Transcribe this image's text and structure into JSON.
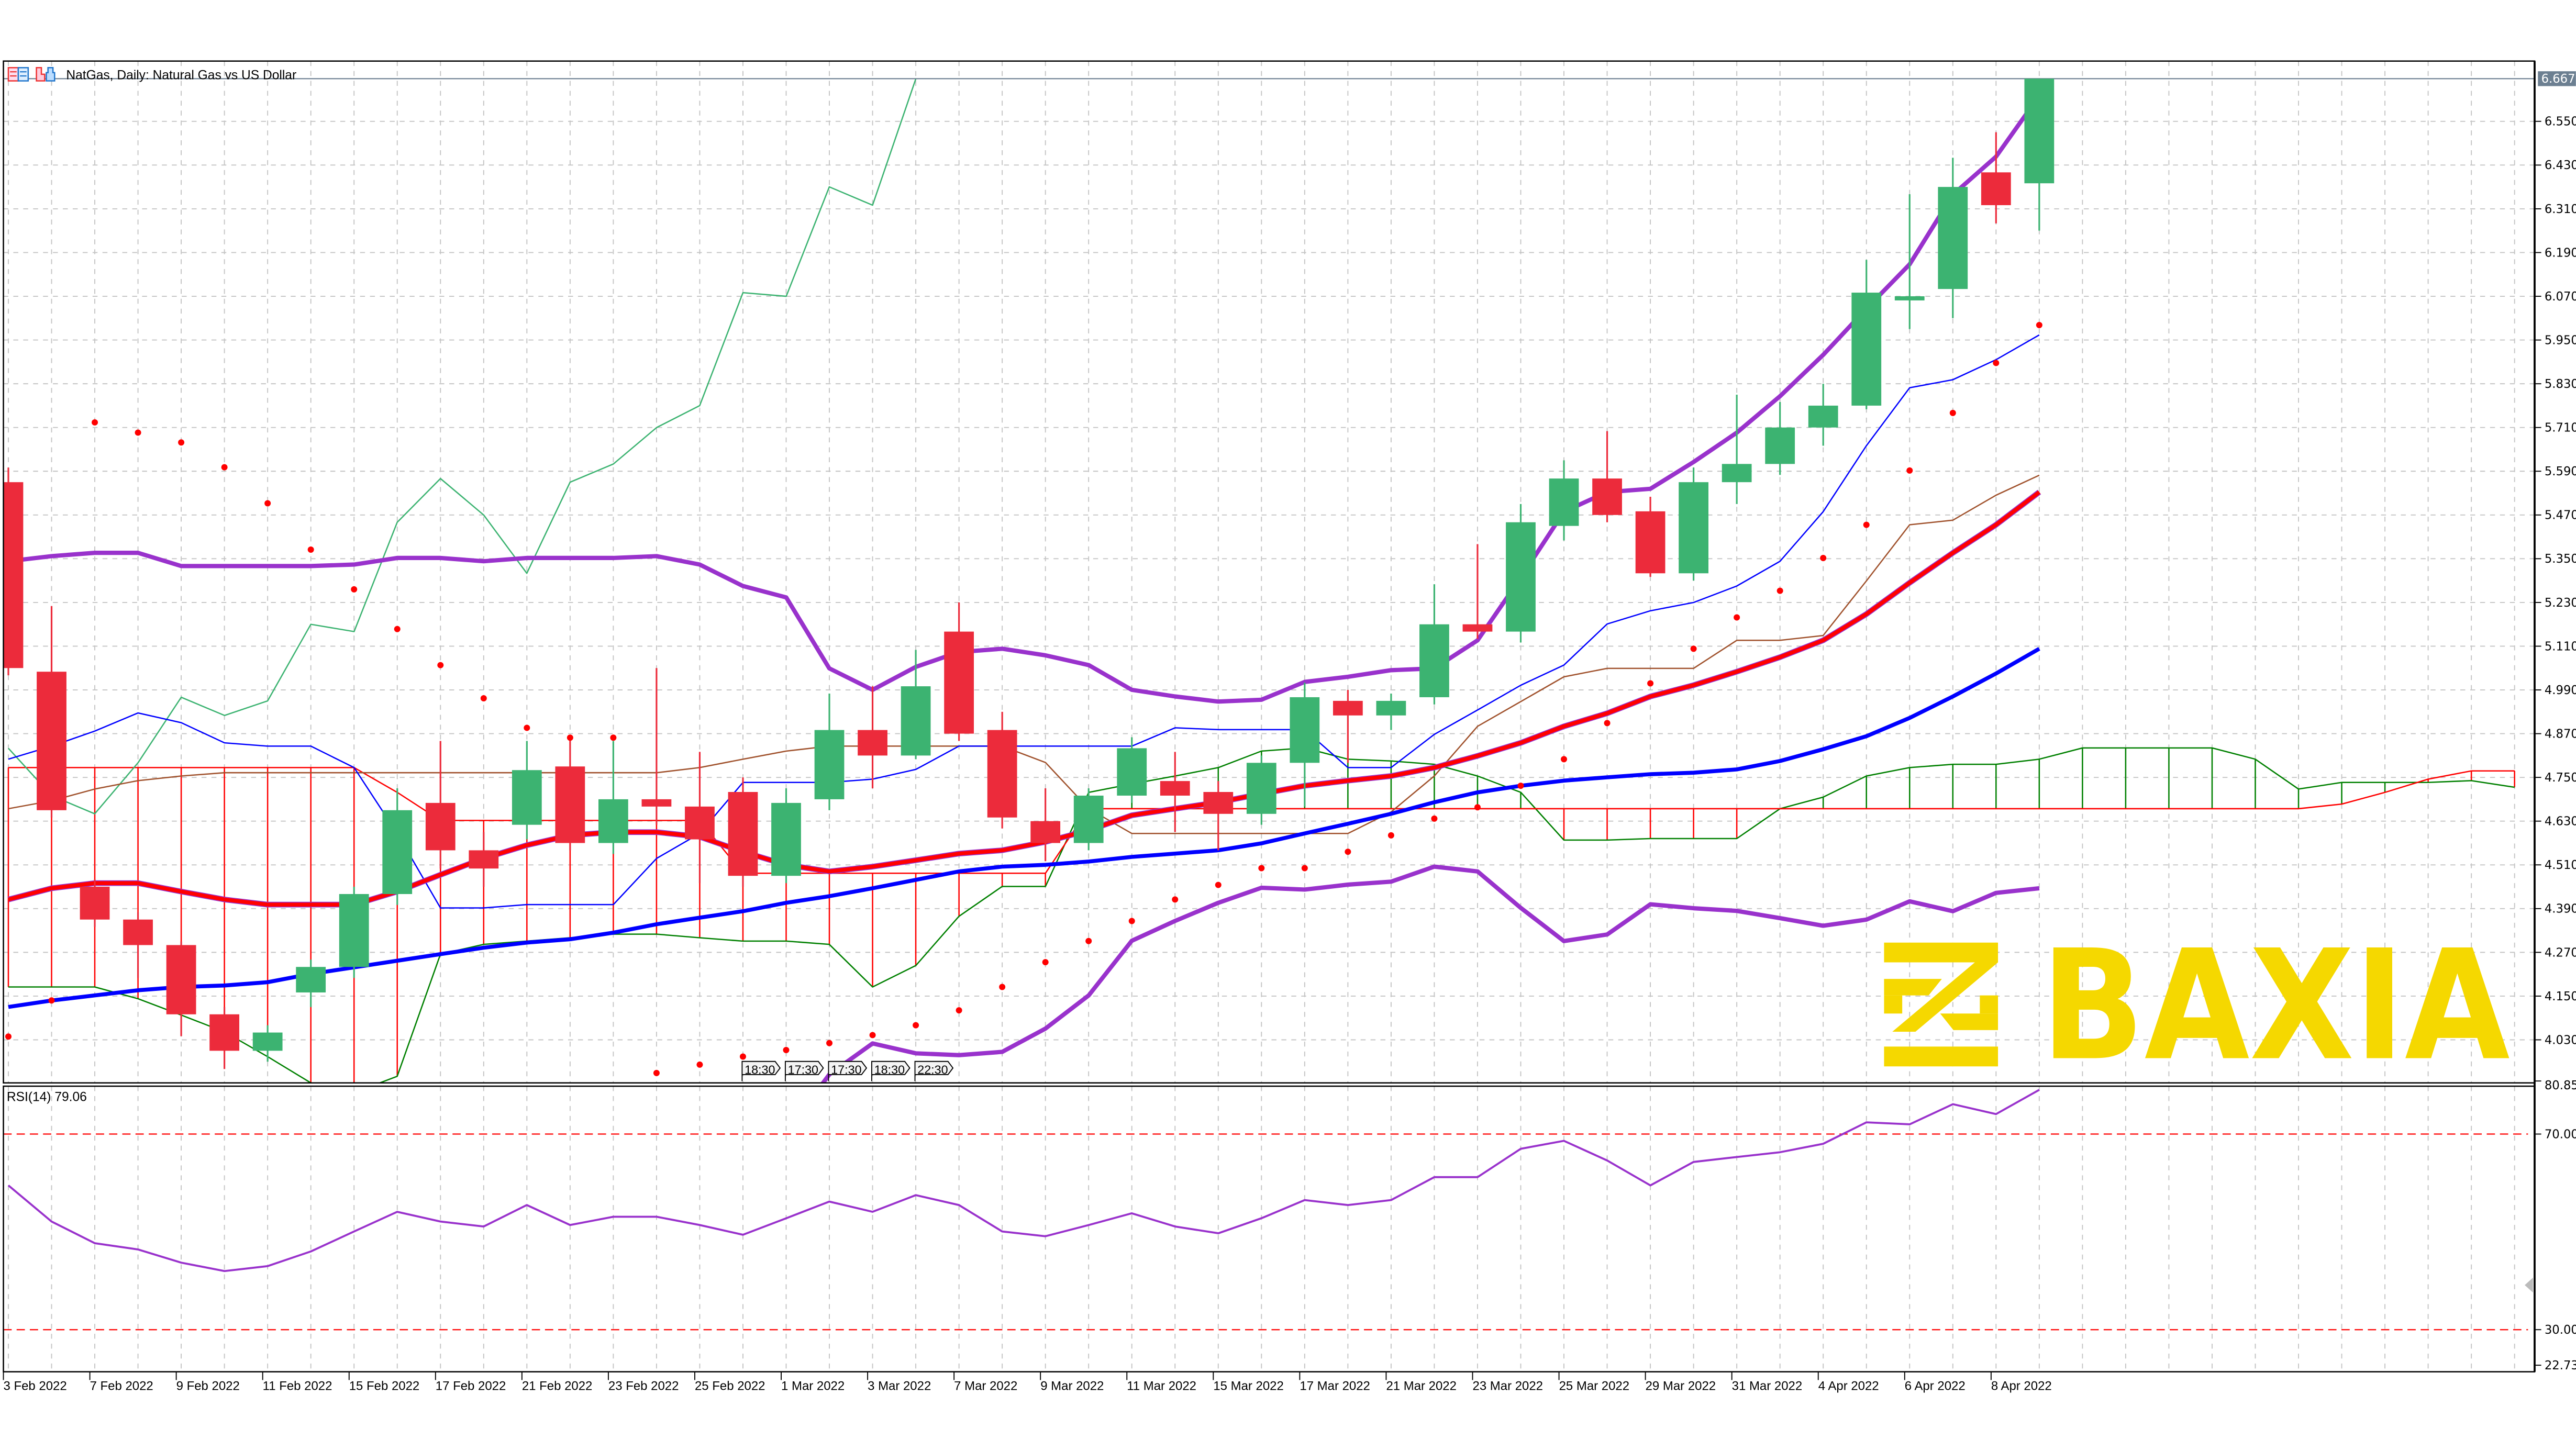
{
  "header": {
    "title": "NatGas, Daily:  Natural Gas vs US Dollar",
    "icons": [
      "indicator-list-icon",
      "chart-template-icon"
    ]
  },
  "colors": {
    "bull": "#3CB371",
    "bear": "#EC2B3B",
    "bollinger": "#9932CC",
    "ma_red": "#FF0000",
    "ma_blue": "#0000FF",
    "sar": "#FF0000",
    "tenkan": "#0000FF",
    "kijun": "#A0522D",
    "chikou": "#3CB371",
    "senkou_a": "#008000",
    "senkou_b": "#FF0000",
    "rsi": "#9932CC",
    "rsi_levels": "#FF0000",
    "price_line": "#6C7F91",
    "logo": "#F5D800"
  },
  "logo": {
    "text": "BAXIA"
  },
  "chart_data": {
    "type": "candlestick",
    "title": "NatGas, Daily:  Natural Gas vs US Dollar",
    "ylim": [
      3.912,
      6.715
    ],
    "y_tick_labels": [
      "6.550",
      "6.430",
      "6.310",
      "6.190",
      "6.070",
      "5.950",
      "5.830",
      "5.710",
      "5.590",
      "5.470",
      "5.350",
      "5.230",
      "5.110",
      "4.990",
      "4.870",
      "4.750",
      "4.630",
      "4.510",
      "4.390",
      "4.270",
      "4.150",
      "4.030"
    ],
    "last_price": "6.667",
    "x_tick_labels": [
      "3 Feb 2022",
      "7 Feb 2022",
      "9 Feb 2022",
      "11 Feb 2022",
      "15 Feb 2022",
      "17 Feb 2022",
      "21 Feb 2022",
      "23 Feb 2022",
      "25 Feb 2022",
      "1 Mar 2022",
      "3 Mar 2022",
      "7 Mar 2022",
      "9 Mar 2022",
      "11 Mar 2022",
      "15 Mar 2022",
      "17 Mar 2022",
      "21 Mar 2022",
      "23 Mar 2022",
      "25 Mar 2022",
      "29 Mar 2022",
      "31 Mar 2022",
      "4 Apr 2022",
      "6 Apr 2022",
      "8 Apr 2022"
    ],
    "candle_fields": [
      "open",
      "high",
      "low",
      "close"
    ],
    "candles": [
      [
        5.56,
        5.6,
        5.03,
        5.05
      ],
      [
        5.04,
        5.22,
        4.64,
        4.66
      ],
      [
        4.45,
        4.47,
        4.34,
        4.36
      ],
      [
        4.36,
        4.38,
        4.2,
        4.29
      ],
      [
        4.29,
        4.3,
        4.04,
        4.1
      ],
      [
        4.1,
        4.12,
        3.95,
        4.0
      ],
      [
        4.0,
        4.07,
        3.97,
        4.05
      ],
      [
        4.16,
        4.25,
        4.12,
        4.23
      ],
      [
        4.23,
        4.45,
        4.2,
        4.43
      ],
      [
        4.43,
        4.72,
        4.4,
        4.66
      ],
      [
        4.68,
        4.85,
        4.5,
        4.55
      ],
      [
        4.55,
        4.6,
        4.45,
        4.5
      ],
      [
        4.62,
        4.85,
        4.58,
        4.77
      ],
      [
        4.78,
        4.86,
        4.55,
        4.57
      ],
      [
        4.57,
        4.85,
        4.54,
        4.69
      ],
      [
        4.69,
        5.05,
        4.62,
        4.67
      ],
      [
        4.67,
        4.82,
        4.46,
        4.58
      ],
      [
        4.71,
        4.75,
        4.45,
        4.48
      ],
      [
        4.48,
        4.72,
        4.46,
        4.68
      ],
      [
        4.69,
        4.98,
        4.66,
        4.88
      ],
      [
        4.88,
        5.0,
        4.72,
        4.81
      ],
      [
        4.81,
        5.1,
        4.8,
        5.0
      ],
      [
        5.15,
        5.23,
        4.85,
        4.87
      ],
      [
        4.88,
        4.93,
        4.61,
        4.64
      ],
      [
        4.63,
        4.72,
        4.52,
        4.57
      ],
      [
        4.57,
        4.72,
        4.55,
        4.7
      ],
      [
        4.7,
        4.86,
        4.68,
        4.83
      ],
      [
        4.74,
        4.82,
        4.6,
        4.7
      ],
      [
        4.71,
        4.74,
        4.55,
        4.65
      ],
      [
        4.65,
        4.81,
        4.62,
        4.79
      ],
      [
        4.79,
        5.01,
        4.67,
        4.97
      ],
      [
        4.96,
        4.99,
        4.79,
        4.92
      ],
      [
        4.92,
        4.98,
        4.88,
        4.96
      ],
      [
        4.97,
        5.28,
        4.95,
        5.17
      ],
      [
        5.17,
        5.39,
        5.13,
        5.15
      ],
      [
        5.15,
        5.5,
        5.12,
        5.45
      ],
      [
        5.44,
        5.62,
        5.4,
        5.57
      ],
      [
        5.57,
        5.7,
        5.45,
        5.47
      ],
      [
        5.48,
        5.52,
        5.3,
        5.31
      ],
      [
        5.31,
        5.6,
        5.29,
        5.56
      ],
      [
        5.56,
        5.8,
        5.5,
        5.61
      ],
      [
        5.61,
        5.78,
        5.58,
        5.71
      ],
      [
        5.71,
        5.83,
        5.66,
        5.77
      ],
      [
        5.77,
        6.17,
        5.76,
        6.08
      ],
      [
        6.06,
        6.35,
        5.98,
        6.07
      ],
      [
        6.09,
        6.45,
        6.01,
        6.37
      ],
      [
        6.41,
        6.52,
        6.27,
        6.32
      ],
      [
        6.38,
        6.667,
        6.25,
        6.667
      ]
    ],
    "indicators": {
      "bollinger_upper": [
        5.343,
        5.357,
        5.366,
        5.366,
        5.33,
        5.33,
        5.33,
        5.33,
        5.334,
        5.352,
        5.352,
        5.343,
        5.352,
        5.352,
        5.352,
        5.357,
        5.334,
        5.275,
        5.244,
        5.049,
        4.99,
        5.053,
        5.094,
        5.103,
        5.085,
        5.058,
        4.99,
        4.972,
        4.958,
        4.963,
        5.012,
        5.026,
        5.044,
        5.049,
        5.126,
        5.298,
        5.479,
        5.533,
        5.542,
        5.615,
        5.696,
        5.796,
        5.909,
        6.036,
        6.158,
        6.349,
        6.453,
        6.62
      ],
      "bollinger_middle": [
        4.415,
        4.446,
        4.46,
        4.46,
        4.437,
        4.415,
        4.401,
        4.401,
        4.401,
        4.437,
        4.483,
        4.528,
        4.564,
        4.591,
        4.6,
        4.6,
        4.587,
        4.546,
        4.51,
        4.492,
        4.505,
        4.523,
        4.541,
        4.55,
        4.573,
        4.605,
        4.646,
        4.664,
        4.682,
        4.705,
        4.727,
        4.741,
        4.754,
        4.777,
        4.809,
        4.845,
        4.89,
        4.926,
        4.972,
        5.003,
        5.04,
        5.08,
        5.126,
        5.198,
        5.284,
        5.366,
        5.443,
        5.533
      ],
      "bollinger_lower": [
        3.487,
        3.535,
        3.554,
        3.554,
        3.544,
        3.5,
        3.472,
        3.472,
        3.468,
        3.522,
        3.614,
        3.713,
        3.776,
        3.83,
        3.848,
        3.843,
        3.84,
        3.817,
        3.776,
        3.935,
        4.02,
        3.993,
        3.988,
        3.997,
        4.061,
        4.152,
        4.302,
        4.356,
        4.406,
        4.447,
        4.442,
        4.456,
        4.464,
        4.505,
        4.492,
        4.392,
        4.301,
        4.319,
        4.402,
        4.391,
        4.384,
        4.364,
        4.343,
        4.36,
        4.41,
        4.383,
        4.433,
        4.446
      ],
      "moving_average_blue": [
        4.12,
        4.138,
        4.152,
        4.166,
        4.175,
        4.179,
        4.188,
        4.211,
        4.229,
        4.247,
        4.265,
        4.283,
        4.297,
        4.306,
        4.324,
        4.347,
        4.365,
        4.383,
        4.406,
        4.424,
        4.446,
        4.469,
        4.492,
        4.505,
        4.51,
        4.519,
        4.532,
        4.541,
        4.55,
        4.569,
        4.596,
        4.623,
        4.65,
        4.682,
        4.709,
        4.727,
        4.741,
        4.75,
        4.759,
        4.763,
        4.772,
        4.795,
        4.827,
        4.863,
        4.913,
        4.972,
        5.035,
        5.103
      ],
      "parabolic_sar": [
        4.039,
        4.138,
        5.724,
        5.696,
        5.669,
        5.601,
        5.502,
        5.375,
        5.266,
        5.157,
        5.058,
        4.967,
        4.886,
        4.859,
        4.859,
        3.939,
        3.962,
        3.984,
        4.002,
        4.021,
        4.043,
        4.07,
        4.111,
        4.175,
        4.243,
        4.301,
        4.356,
        4.415,
        4.455,
        4.501,
        4.501,
        4.546,
        4.591,
        4.637,
        4.668,
        4.727,
        4.8,
        4.899,
        5.008,
        5.103,
        5.189,
        5.262,
        5.352,
        5.443,
        5.592,
        5.75,
        5.887,
        5.991
      ],
      "ichimoku_tenkan": [
        4.8,
        4.836,
        4.877,
        4.927,
        4.9,
        4.845,
        4.836,
        4.836,
        4.777,
        4.596,
        4.392,
        4.392,
        4.401,
        4.401,
        4.401,
        4.528,
        4.596,
        4.736,
        4.736,
        4.736,
        4.745,
        4.772,
        4.836,
        4.836,
        4.836,
        4.836,
        4.836,
        4.886,
        4.881,
        4.881,
        4.881,
        4.777,
        4.777,
        4.868,
        4.935,
        5.003,
        5.058,
        5.171,
        5.207,
        5.23,
        5.275,
        5.343,
        5.479,
        5.66,
        5.819,
        5.841,
        5.896,
        5.964
      ],
      "ichimoku_kijun": [
        4.664,
        4.686,
        4.718,
        4.741,
        4.754,
        4.763,
        4.763,
        4.763,
        4.763,
        4.763,
        4.763,
        4.763,
        4.763,
        4.763,
        4.763,
        4.763,
        4.777,
        4.8,
        4.822,
        4.836,
        4.836,
        4.836,
        4.836,
        4.836,
        4.791,
        4.664,
        4.596,
        4.596,
        4.596,
        4.596,
        4.596,
        4.596,
        4.655,
        4.754,
        4.89,
        4.958,
        5.026,
        5.049,
        5.049,
        5.049,
        5.126,
        5.126,
        5.139,
        5.289,
        5.443,
        5.456,
        5.524,
        5.579
      ],
      "ichimoku_senkou_a": [
        4.175,
        4.175,
        4.175,
        4.143,
        4.098,
        4.052,
        3.984,
        3.912,
        3.885,
        3.93,
        4.265,
        4.292,
        4.301,
        4.31,
        4.32,
        4.32,
        4.31,
        4.301,
        4.301,
        4.292,
        4.175,
        4.234,
        4.369,
        4.451,
        4.451,
        4.709,
        4.732,
        4.754,
        4.777,
        4.822,
        4.831,
        4.8,
        4.795,
        4.786,
        4.754,
        4.709,
        4.578,
        4.578,
        4.582,
        4.582,
        4.582,
        4.664,
        4.696,
        4.754,
        4.777,
        4.786,
        4.786,
        4.8,
        4.831,
        4.831,
        4.831,
        4.831,
        4.8,
        4.718,
        4.736,
        4.736,
        4.736,
        4.741,
        4.723
      ],
      "ichimoku_senkou_b": [
        4.777,
        4.777,
        4.777,
        4.777,
        4.777,
        4.777,
        4.777,
        4.777,
        4.777,
        4.709,
        4.632,
        4.632,
        4.632,
        4.632,
        4.632,
        4.632,
        4.632,
        4.487,
        4.487,
        4.487,
        4.487,
        4.487,
        4.487,
        4.487,
        4.487,
        4.664,
        4.664,
        4.664,
        4.664,
        4.664,
        4.664,
        4.664,
        4.664,
        4.664,
        4.664,
        4.664,
        4.664,
        4.664,
        4.664,
        4.664,
        4.664,
        4.664,
        4.664,
        4.664,
        4.664,
        4.664,
        4.664,
        4.664,
        4.664,
        4.664,
        4.664,
        4.664,
        4.664,
        4.664,
        4.677,
        4.709,
        4.745,
        4.768,
        4.768
      ],
      "ichimoku_chikou_shift": 26
    },
    "time_flags": [
      "18:30",
      "17:30",
      "17:30",
      "18:30",
      "22:30"
    ],
    "rsi": {
      "label": "RSI(14) 79.06",
      "period": 14,
      "ylim": [
        22.73,
        80.85
      ],
      "y_tick_labels": [
        "80.85",
        "70.00",
        "30.00",
        "22.73"
      ],
      "levels": [
        70,
        30
      ],
      "values": [
        59.5,
        52.1,
        47.7,
        46.4,
        43.7,
        42.0,
        43.0,
        46.0,
        50.1,
        54.1,
        52.1,
        51.1,
        55.5,
        51.4,
        53.1,
        53.1,
        51.4,
        49.4,
        52.8,
        56.2,
        54.1,
        57.5,
        55.5,
        50.1,
        49.1,
        51.4,
        53.8,
        51.1,
        49.7,
        52.8,
        56.5,
        55.5,
        56.5,
        61.2,
        61.2,
        67.0,
        68.6,
        64.6,
        59.5,
        64.3,
        65.3,
        66.3,
        68.0,
        72.4,
        72.0,
        76.1,
        74.1,
        79.06
      ]
    }
  }
}
